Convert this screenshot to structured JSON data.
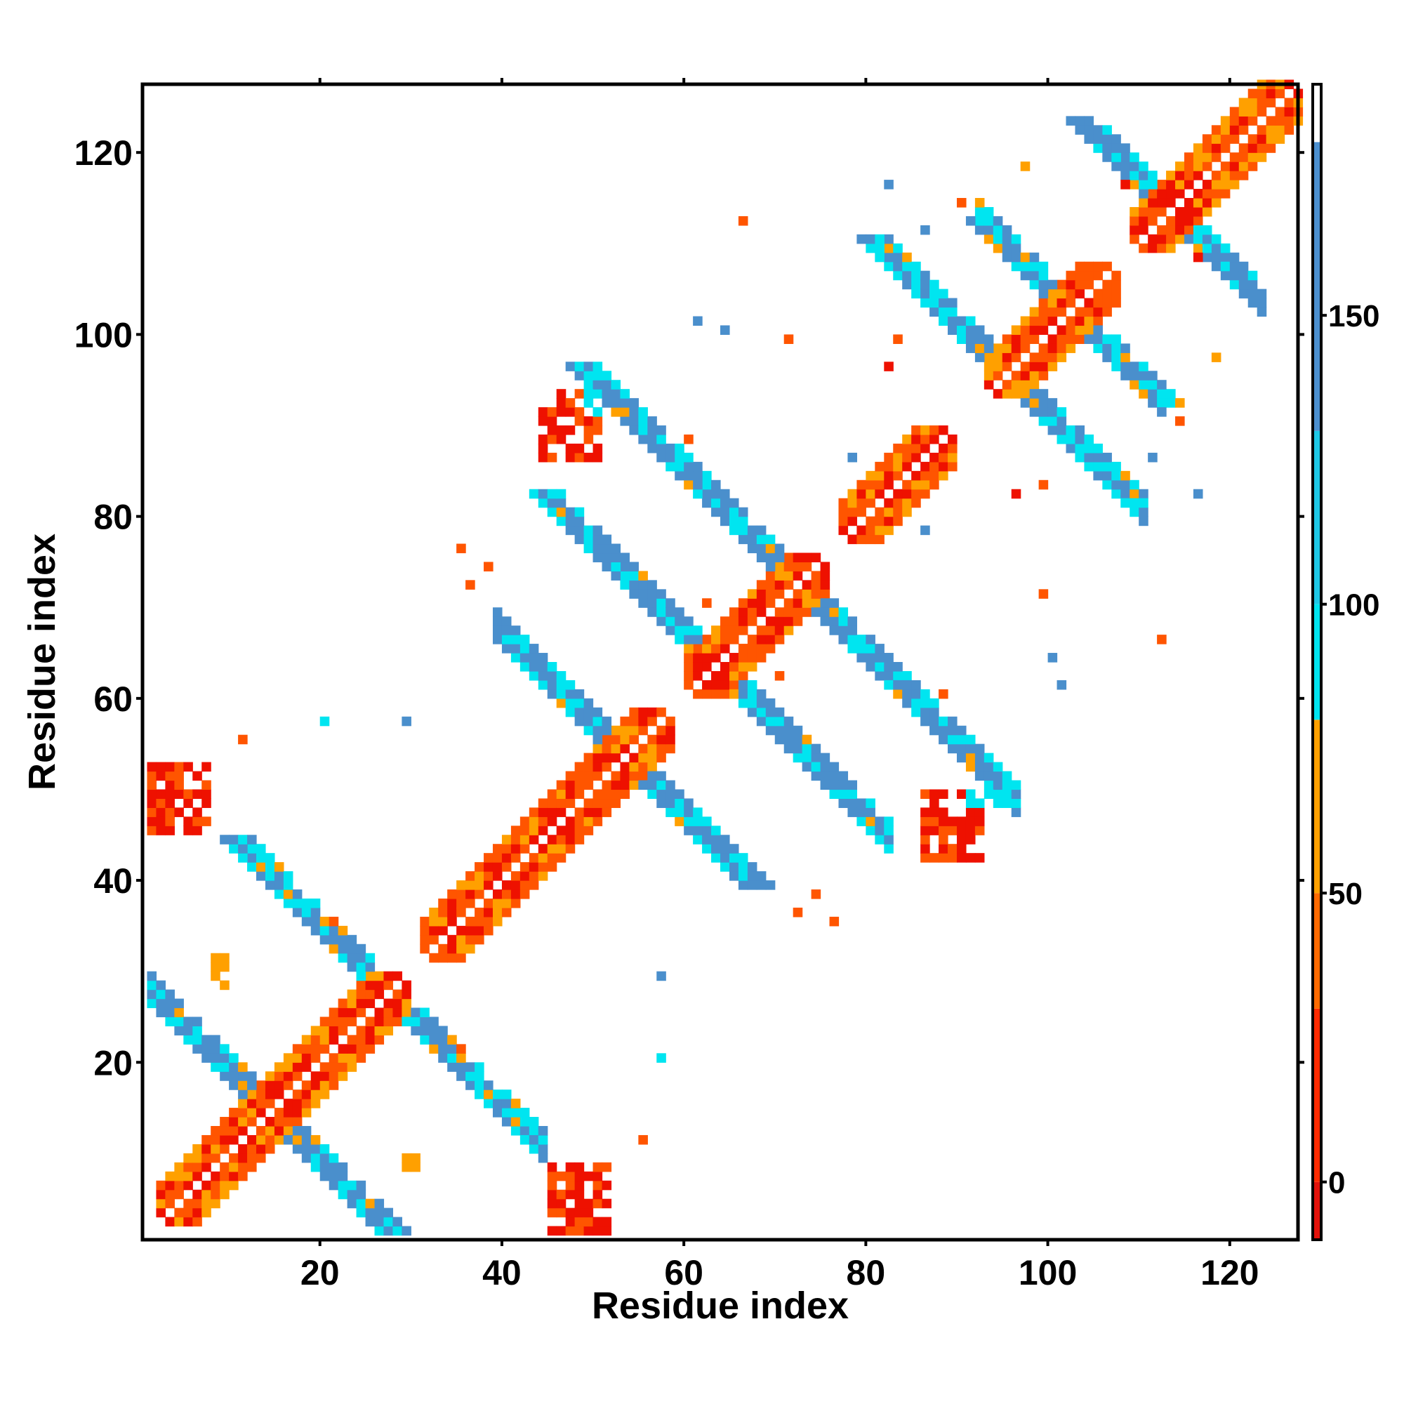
{
  "chart_data": {
    "type": "heatmap",
    "title": "",
    "xlabel": "Residue index",
    "ylabel": "Residue index",
    "xlim": [
      1,
      127
    ],
    "ylim": [
      1,
      127
    ],
    "x_ticks": [
      20,
      40,
      60,
      80,
      100,
      120
    ],
    "y_ticks": [
      20,
      40,
      60,
      80,
      100,
      120
    ],
    "x_tick_labels": [
      "20",
      "40",
      "60",
      "80",
      "100",
      "120"
    ],
    "y_tick_labels": [
      "20",
      "40",
      "60",
      "80",
      "100",
      "120"
    ],
    "grid": false,
    "colorbar": {
      "placement": "right",
      "range": [
        -10,
        190
      ],
      "ticks": [
        0,
        50,
        100,
        150
      ],
      "tick_labels": [
        "0",
        "50",
        "100",
        "150"
      ],
      "bands": [
        {
          "from": -10,
          "to": 0,
          "color": "#e3120b"
        },
        {
          "from": 0,
          "to": 30,
          "color": "#ff2a00"
        },
        {
          "from": 30,
          "to": 50,
          "color": "#ff6a00"
        },
        {
          "from": 50,
          "to": 80,
          "color": "#ffa000"
        },
        {
          "from": 80,
          "to": 100,
          "color": "#00e5f0"
        },
        {
          "from": 100,
          "to": 130,
          "color": "#1ec8e6"
        },
        {
          "from": 130,
          "to": 180,
          "color": "#4b8fcf"
        },
        {
          "from": 180,
          "to": 190,
          "color": "#ffffff"
        }
      ]
    },
    "value_categories": {
      "0": "#ee1100",
      "1": "#ff5500",
      "2": "#ffa000",
      "3": "#00e5f0",
      "4": "#4a8fcc"
    },
    "patterns": {
      "helix_diagonals": [
        [
          2,
          28
        ],
        [
          31,
          57
        ],
        [
          60,
          74
        ],
        [
          77,
          88
        ],
        [
          93,
          106
        ],
        [
          109,
          127
        ]
      ],
      "antiparallel_bands": [
        {
          "center": 14,
          "x_range": [
            1,
            16
          ]
        },
        {
          "center": 27,
          "x_range": [
            12,
            44
          ]
        },
        {
          "center": 53,
          "x_range": [
            39,
            66
          ]
        },
        {
          "center": 63,
          "x_range": [
            53,
            82
          ]
        },
        {
          "center": 72,
          "x_range": [
            62,
            96
          ]
        },
        {
          "center": 95,
          "x_range": [
            82,
            110
          ]
        },
        {
          "center": 102,
          "x_range": [
            92,
            112
          ]
        },
        {
          "center": 113,
          "x_range": [
            108,
            123
          ]
        }
      ]
    },
    "patches": [
      {
        "x": [
          45,
          51
        ],
        "y": [
          1,
          8
        ],
        "color": "#ee1100"
      },
      {
        "x": [
          1,
          7
        ],
        "y": [
          45,
          52
        ],
        "color": "#ee1100"
      },
      {
        "x": [
          86,
          92
        ],
        "y": [
          42,
          49
        ],
        "color": "#ee1100"
      },
      {
        "x": [
          44,
          50
        ],
        "y": [
          86,
          93
        ],
        "color": "#ee1100"
      },
      {
        "x": [
          91,
          95
        ],
        "y": [
          48,
          49
        ],
        "color": "#00e5f0"
      },
      {
        "x": [
          49,
          50
        ],
        "y": [
          91,
          95
        ],
        "color": "#00e5f0"
      },
      {
        "x": [
          28,
          31
        ],
        "y": [
          8,
          9
        ],
        "color": "#ffa000"
      },
      {
        "x": [
          8,
          9
        ],
        "y": [
          28,
          31
        ],
        "color": "#ffa000"
      }
    ],
    "isolated_points": [
      [
        11,
        55,
        1
      ],
      [
        55,
        11,
        1
      ],
      [
        20,
        57,
        3
      ],
      [
        57,
        20,
        3
      ],
      [
        21,
        35,
        1
      ],
      [
        35,
        21,
        1
      ],
      [
        38,
        74,
        1
      ],
      [
        74,
        38,
        1
      ],
      [
        36,
        72,
        1
      ],
      [
        72,
        36,
        1
      ],
      [
        70,
        62,
        1
      ],
      [
        62,
        70,
        1
      ],
      [
        66,
        112,
        1
      ],
      [
        112,
        66,
        1
      ],
      [
        82,
        116,
        4
      ],
      [
        116,
        82,
        4
      ],
      [
        86,
        78,
        4
      ],
      [
        78,
        86,
        4
      ],
      [
        97,
        118,
        2
      ],
      [
        118,
        97,
        2
      ],
      [
        90,
        114,
        1
      ],
      [
        114,
        90,
        1
      ],
      [
        82,
        96,
        0
      ],
      [
        96,
        82,
        0
      ],
      [
        86,
        111,
        4
      ],
      [
        111,
        86,
        4
      ],
      [
        108,
        116,
        0
      ],
      [
        116,
        108,
        0
      ],
      [
        61,
        101,
        4
      ],
      [
        101,
        61,
        4
      ],
      [
        60,
        88,
        1
      ],
      [
        88,
        60,
        1
      ],
      [
        83,
        99,
        1
      ],
      [
        99,
        83,
        1
      ],
      [
        64,
        100,
        4
      ],
      [
        100,
        64,
        4
      ],
      [
        71,
        99,
        1
      ],
      [
        99,
        71,
        1
      ],
      [
        35,
        76,
        1
      ],
      [
        76,
        35,
        1
      ],
      [
        29,
        57,
        4
      ],
      [
        57,
        29,
        4
      ]
    ]
  }
}
